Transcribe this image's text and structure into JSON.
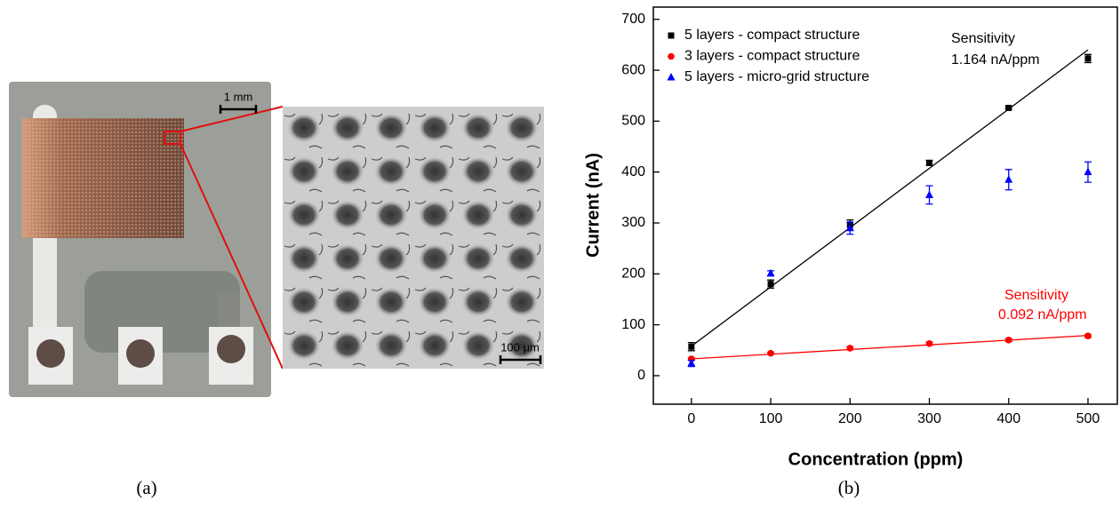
{
  "figure": {
    "panel_a": {
      "label": "(a)",
      "scale_bar_photo": "1 mm",
      "scale_bar_micrograph": "100 μm"
    }
  },
  "chart_data": {
    "type": "scatter",
    "panel_label": "(b)",
    "x_label": "Concentration (ppm)",
    "y_label": "Current (nA)",
    "xlim": [
      -48,
      537
    ],
    "ylim": [
      -56,
      724
    ],
    "xticks": [
      0,
      100,
      200,
      300,
      400,
      500
    ],
    "yticks": [
      0,
      100,
      200,
      300,
      400,
      500,
      600,
      700
    ],
    "legend": "upper left",
    "series": [
      {
        "name": "5 layers - compact structure",
        "color": "#000000",
        "marker": "square",
        "x": [
          0,
          100,
          200,
          300,
          400,
          500
        ],
        "values": [
          57,
          180,
          296,
          418,
          526,
          623
        ],
        "errors": [
          8,
          8,
          10,
          5,
          2,
          8
        ]
      },
      {
        "name": "3 layers - compact structure",
        "color": "#ff0000",
        "marker": "circle",
        "x": [
          0,
          100,
          200,
          300,
          400,
          500
        ],
        "values": [
          33,
          44,
          54,
          63,
          70,
          78
        ],
        "errors": [
          2,
          2,
          3,
          3,
          3,
          3
        ]
      },
      {
        "name": "5 layers - micro-grid structure",
        "color": "#0000ff",
        "marker": "triangle",
        "x": [
          0,
          100,
          200,
          300,
          400,
          500
        ],
        "values": [
          24,
          201,
          290,
          355,
          385,
          400
        ],
        "errors": [
          6,
          5,
          12,
          18,
          20,
          20
        ]
      }
    ],
    "fit_lines": [
      {
        "color": "#000000",
        "x": [
          0,
          500
        ],
        "values": [
          58,
          640
        ]
      },
      {
        "color": "#ff0000",
        "x": [
          0,
          500
        ],
        "values": [
          33,
          79
        ]
      }
    ],
    "annotations": [
      {
        "text": "Sensitivity",
        "color": "#000000"
      },
      {
        "text": "1.164 nA/ppm",
        "color": "#000000"
      },
      {
        "text": "Sensitivity",
        "color": "#ff0000"
      },
      {
        "text": "0.092 nA/ppm",
        "color": "#ff0000"
      }
    ]
  }
}
